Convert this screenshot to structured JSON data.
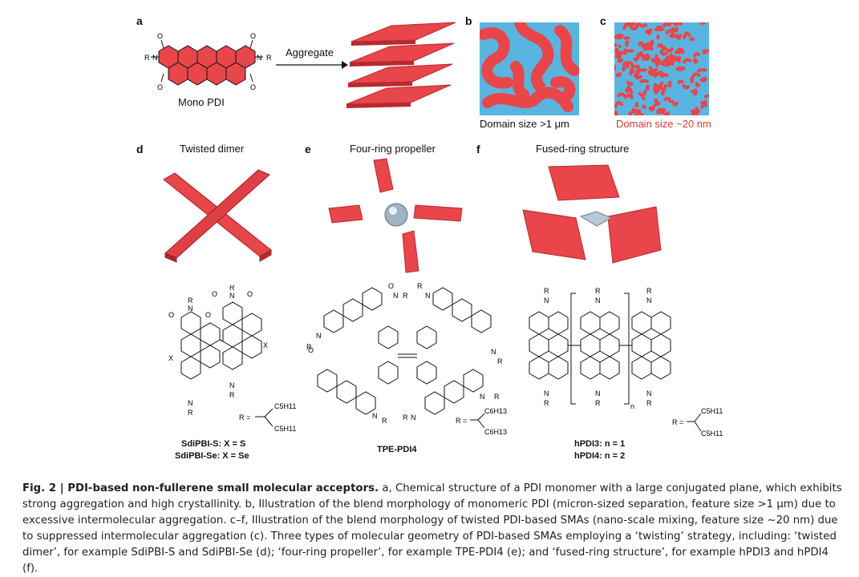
{
  "panels": {
    "a": {
      "label": "a",
      "mol_name": "Mono PDI",
      "arrow_text": "Aggregate"
    },
    "b": {
      "label": "b",
      "caption": "Domain size >1 μm"
    },
    "c": {
      "label": "c",
      "caption": "Domain size ~20 nm"
    },
    "d": {
      "label": "d",
      "title": "Twisted dimer",
      "names": [
        "SdiPBI-S: X = S",
        "SdiPBI-Se: X = Se"
      ]
    },
    "e": {
      "label": "e",
      "title": "Four-ring propeller",
      "name": "TPE-PDI4"
    },
    "f": {
      "label": "f",
      "title": "Fused-ring structure",
      "names": [
        "hPDI3: n = 1",
        "hPDI4: n = 2"
      ]
    }
  },
  "atoms": {
    "O": "O",
    "N": "N",
    "R": "R",
    "X": "X",
    "n": "n",
    "C5H11": "C5H11",
    "C6H13": "C6H13",
    "Req": "R ="
  },
  "caption": {
    "fig": "Fig. 2 | PDI-based non-fullerene small molecular acceptors.",
    "text_a": " a, Chemical structure of a PDI monomer with a large conjugated plane, which exhibits strong aggregation and high crystallinity. ",
    "text_b": "b, Illustration of the blend morphology of monomeric PDI (micron-sized separation, feature size >1 μm) due to excessive intermolecular aggregation. ",
    "text_cf": "c–f, Illustration of the blend morphology of twisted PDI-based SMAs (nano-scale mixing, feature size ~20 nm) due to suppressed intermolecular aggregation (c). Three types of molecular geometry of PDI-based SMAs employing a ‘twisting’ strategy, including: ‘twisted dimer’, for example SdiPBI-S and SdiPBI-Se (d); ‘four-ring propeller’, for example TPE-PDI4 (e); and ‘fused-ring structure’, for example hPDI3 and hPDI4 (f)."
  },
  "colors": {
    "pdi_red": "#e8464a",
    "pdi_dark": "#b82a30",
    "domain_blue": "#5ab4e0",
    "caption_red": "#d23a36"
  }
}
